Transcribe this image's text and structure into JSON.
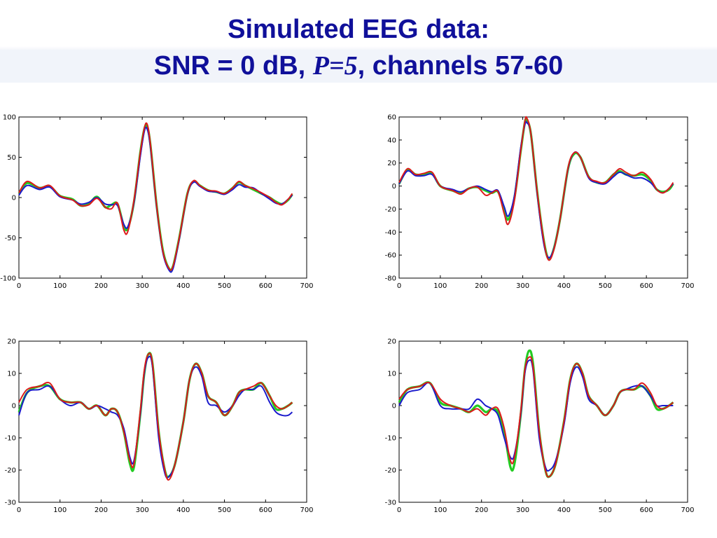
{
  "title": {
    "line1": "Simulated EEG data:",
    "line2_prefix": "SNR = 0 dB, ",
    "line2_italic": "P=5",
    "line2_suffix": ", channels 57-60"
  },
  "colors": {
    "green": "#22cc22",
    "blue": "#1a1acc",
    "red": "#dd1a1a",
    "axis": "#000000"
  },
  "chart_data": [
    {
      "type": "line",
      "xlim": [
        0,
        700
      ],
      "ylim": [
        -100,
        100
      ],
      "xticks": [
        0,
        100,
        200,
        300,
        400,
        500,
        600,
        700
      ],
      "yticks": [
        -100,
        -50,
        0,
        50,
        100
      ],
      "x": [
        0,
        20,
        50,
        75,
        100,
        130,
        150,
        170,
        190,
        210,
        225,
        240,
        255,
        265,
        280,
        295,
        305,
        312,
        320,
        335,
        350,
        365,
        375,
        390,
        410,
        425,
        440,
        460,
        480,
        500,
        520,
        535,
        550,
        570,
        590,
        610,
        625,
        640,
        655,
        665
      ],
      "series": [
        {
          "color": "green",
          "values": [
            5,
            18,
            12,
            14,
            2,
            -2,
            -10,
            -8,
            1,
            -12,
            -9,
            -8,
            -35,
            -38,
            -5,
            55,
            85,
            88,
            65,
            -10,
            -65,
            -88,
            -85,
            -50,
            5,
            20,
            15,
            9,
            7,
            5,
            12,
            19,
            15,
            10,
            5,
            0,
            -5,
            -8,
            -3,
            4
          ]
        },
        {
          "color": "blue",
          "values": [
            3,
            15,
            10,
            13,
            1,
            -3,
            -8,
            -6,
            0,
            -8,
            -9,
            -10,
            -33,
            -36,
            -6,
            50,
            82,
            85,
            62,
            -12,
            -68,
            -90,
            -88,
            -52,
            4,
            19,
            14,
            8,
            7,
            4,
            10,
            16,
            13,
            12,
            5,
            -2,
            -7,
            -8,
            -2,
            3
          ]
        },
        {
          "color": "red",
          "values": [
            6,
            20,
            12,
            15,
            2,
            -3,
            -10,
            -9,
            -1,
            -12,
            -14,
            -7,
            -40,
            -42,
            -3,
            55,
            86,
            91,
            66,
            -10,
            -66,
            -88,
            -85,
            -50,
            5,
            21,
            15,
            9,
            8,
            5,
            12,
            20,
            15,
            11,
            6,
            0,
            -6,
            -9,
            -2,
            5
          ]
        }
      ]
    },
    {
      "type": "line",
      "xlim": [
        0,
        700
      ],
      "ylim": [
        -80,
        60
      ],
      "xticks": [
        0,
        100,
        200,
        300,
        400,
        500,
        600,
        700
      ],
      "yticks": [
        -80,
        -60,
        -40,
        -20,
        0,
        20,
        40,
        60
      ],
      "x": [
        0,
        20,
        40,
        60,
        80,
        100,
        130,
        150,
        170,
        190,
        210,
        225,
        240,
        255,
        265,
        280,
        295,
        305,
        310,
        320,
        335,
        350,
        362,
        375,
        390,
        410,
        425,
        440,
        460,
        480,
        500,
        520,
        535,
        550,
        570,
        590,
        610,
        625,
        640,
        655,
        665
      ],
      "series": [
        {
          "color": "green",
          "values": [
            2,
            14,
            10,
            10,
            11,
            0,
            -4,
            -6,
            -2,
            -1,
            -4,
            -6,
            -5,
            -20,
            -29,
            -10,
            30,
            55,
            57,
            45,
            -5,
            -45,
            -63,
            -55,
            -30,
            15,
            28,
            25,
            8,
            3,
            3,
            10,
            13,
            10,
            9,
            10,
            5,
            -3,
            -5,
            -3,
            2
          ]
        },
        {
          "color": "blue",
          "values": [
            2,
            13,
            9,
            9,
            10,
            0,
            -3,
            -5,
            -2,
            0,
            -3,
            -5,
            -4,
            -18,
            -26,
            -8,
            33,
            53,
            55,
            45,
            -7,
            -48,
            -62,
            -55,
            -30,
            15,
            29,
            25,
            7,
            3,
            2,
            8,
            12,
            10,
            7,
            7,
            3,
            -3,
            -6,
            -2,
            2
          ]
        },
        {
          "color": "red",
          "values": [
            3,
            15,
            10,
            11,
            12,
            0,
            -4,
            -7,
            -2,
            -1,
            -8,
            -6,
            -5,
            -24,
            -33,
            -12,
            30,
            56,
            59,
            45,
            -5,
            -45,
            -64,
            -56,
            -30,
            16,
            29,
            25,
            8,
            4,
            3,
            10,
            15,
            12,
            9,
            12,
            6,
            -3,
            -6,
            -2,
            3
          ]
        }
      ]
    },
    {
      "type": "line",
      "xlim": [
        0,
        700
      ],
      "ylim": [
        -30,
        20
      ],
      "xticks": [
        0,
        100,
        200,
        300,
        400,
        500,
        600,
        700
      ],
      "yticks": [
        -30,
        -20,
        -10,
        0,
        10,
        20
      ],
      "x": [
        0,
        20,
        50,
        75,
        100,
        125,
        150,
        170,
        190,
        210,
        225,
        240,
        255,
        270,
        280,
        295,
        305,
        315,
        325,
        340,
        355,
        365,
        380,
        400,
        415,
        430,
        445,
        460,
        480,
        500,
        520,
        535,
        550,
        570,
        590,
        610,
        625,
        640,
        655,
        665
      ],
      "series": [
        {
          "color": "green",
          "values": [
            -2,
            4,
            6,
            6,
            2,
            1,
            1,
            -1,
            0,
            -3,
            -1,
            -2,
            -8,
            -18,
            -19,
            -3,
            10,
            16,
            13,
            -8,
            -20,
            -22,
            -18,
            -5,
            8,
            13,
            10,
            3,
            1,
            -3,
            0,
            4,
            5,
            5,
            7,
            3,
            -1,
            -1,
            0,
            1
          ]
        },
        {
          "color": "blue",
          "values": [
            -3,
            4,
            5,
            6,
            2,
            0,
            1,
            -1,
            0,
            -1,
            -2,
            -3,
            -7,
            -16,
            -17,
            -3,
            10,
            15,
            12,
            -10,
            -21,
            -22,
            -18,
            -5,
            8,
            12,
            9,
            1,
            0,
            -2,
            0,
            3,
            5,
            5,
            6,
            1,
            -2,
            -3,
            -3,
            -2
          ]
        },
        {
          "color": "red",
          "values": [
            1,
            5,
            6,
            7,
            2,
            1,
            1,
            -1,
            0,
            -3,
            -1,
            -2,
            -8,
            -17,
            -18,
            -2,
            11,
            16,
            13,
            -8,
            -20,
            -23,
            -18,
            -5,
            8,
            13,
            10,
            3,
            1,
            -3,
            0,
            4,
            5,
            6,
            7,
            3,
            0,
            -1,
            0,
            1
          ]
        }
      ]
    },
    {
      "type": "line",
      "xlim": [
        0,
        700
      ],
      "ylim": [
        -30,
        20
      ],
      "xticks": [
        0,
        100,
        200,
        300,
        400,
        500,
        600,
        700
      ],
      "yticks": [
        -30,
        -20,
        -10,
        0,
        10,
        20
      ],
      "x": [
        0,
        20,
        50,
        75,
        100,
        125,
        150,
        170,
        190,
        210,
        225,
        240,
        255,
        270,
        280,
        295,
        305,
        315,
        325,
        340,
        355,
        365,
        380,
        400,
        415,
        430,
        445,
        460,
        480,
        500,
        520,
        535,
        550,
        570,
        590,
        610,
        625,
        640,
        655,
        665
      ],
      "series": [
        {
          "color": "green",
          "values": [
            1,
            5,
            6,
            7,
            1,
            0,
            -1,
            -2,
            0,
            -2,
            -1,
            -2,
            -8,
            -19,
            -18,
            -3,
            11,
            17,
            13,
            -8,
            -20,
            -22,
            -18,
            -5,
            8,
            13,
            10,
            3,
            0,
            -3,
            0,
            4,
            5,
            5,
            6,
            3,
            -1,
            -1,
            0,
            1
          ]
        },
        {
          "color": "blue",
          "values": [
            0,
            4,
            5,
            7,
            0,
            -1,
            -1,
            -1,
            2,
            0,
            -1,
            -3,
            -10,
            -16,
            -15,
            -3,
            10,
            14,
            11,
            -10,
            -19,
            -20,
            -17,
            -6,
            7,
            12,
            9,
            2,
            0,
            -3,
            0,
            4,
            5,
            6,
            6,
            3,
            0,
            0,
            0,
            0
          ]
        },
        {
          "color": "red",
          "values": [
            2,
            5,
            6,
            7,
            2,
            0,
            -1,
            -2,
            -1,
            -3,
            -1,
            -1,
            -7,
            -17,
            -16,
            -2,
            11,
            15,
            12,
            -8,
            -20,
            -22,
            -18,
            -5,
            8,
            13,
            10,
            3,
            0,
            -3,
            0,
            4,
            5,
            5,
            7,
            4,
            0,
            -1,
            0,
            1
          ]
        }
      ]
    }
  ]
}
